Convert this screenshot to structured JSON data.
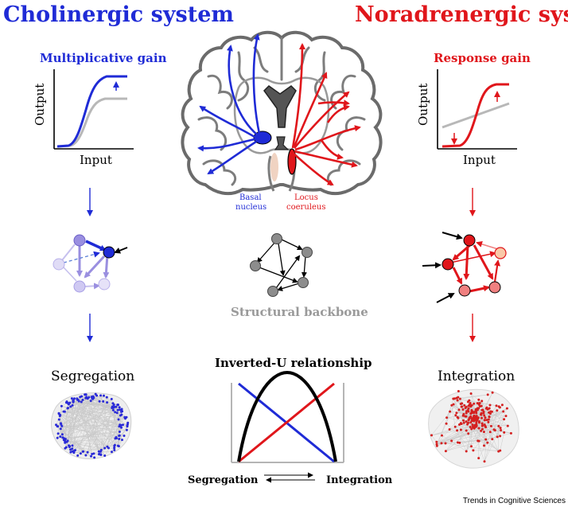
{
  "titles": {
    "left": "Cholinergic system",
    "right": "Noradrenergic system"
  },
  "left_panel": {
    "gain_label": "Multiplicative gain",
    "y_axis": "Output",
    "x_axis": "Input",
    "network_label": "Segregation"
  },
  "right_panel": {
    "gain_label": "Response gain",
    "y_axis": "Output",
    "x_axis": "Input",
    "network_label": "Integration"
  },
  "brain": {
    "left_nucleus_line1": "Basal",
    "left_nucleus_line2": "nucleus",
    "right_nucleus_line1": "Locus",
    "right_nucleus_line2": "coeruleus"
  },
  "center": {
    "backbone_label": "Structural backbone",
    "inverted_u_title": "Inverted-U relationship",
    "axis_left": "Segregation",
    "axis_right": "Integration"
  },
  "footer": {
    "journal": "Trends in Cognitive Sciences"
  },
  "colors": {
    "cholinergic": "#1f2bd6",
    "noradrenergic": "#e0161b",
    "backbone": "#8c8c8c",
    "baseline_curve": "#b8b8b8"
  }
}
